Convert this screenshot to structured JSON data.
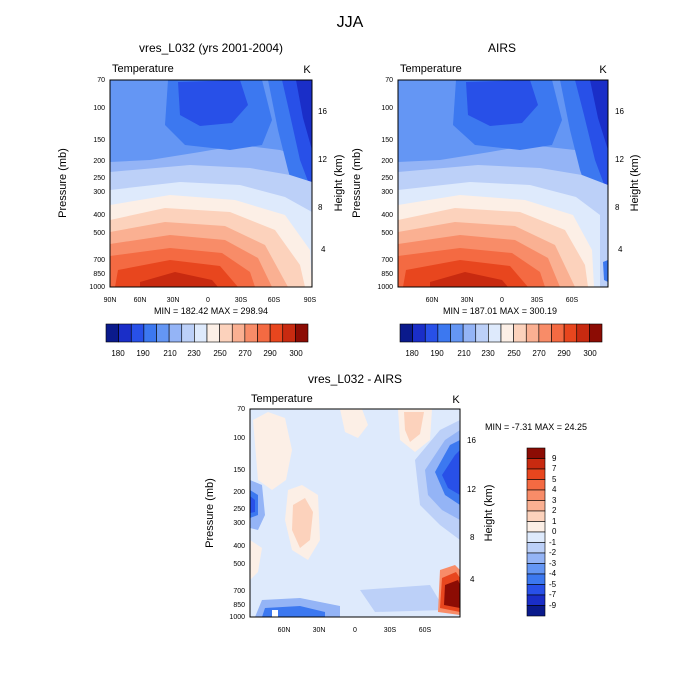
{
  "figure_title": "JJA",
  "colors": {
    "warm_scale": [
      "#0a1a8c",
      "#1a2ec8",
      "#2850e8",
      "#3c78f0",
      "#6496f4",
      "#94b4f6",
      "#bcd0f8",
      "#deeafc",
      "#fcefe6",
      "#fcd2bc",
      "#fab092",
      "#f88c68",
      "#f46a42",
      "#e8461e",
      "#c82a10",
      "#8c0c04"
    ],
    "diff_scale": [
      "#0a1a8c",
      "#1a2ec8",
      "#2850e8",
      "#3c78f0",
      "#6496f4",
      "#94b4f6",
      "#bcd0f8",
      "#deeafc",
      "#fcefe6",
      "#fcd2bc",
      "#fab092",
      "#f88c68",
      "#f46a42",
      "#e8461e",
      "#c82a10",
      "#8c0c04"
    ]
  },
  "chart_data": [
    {
      "type": "heatmap",
      "title": "vres_L032 (yrs 2001-2004)",
      "variable_label": "Temperature",
      "units": "K",
      "ylabel_left": "Pressure (mb)",
      "ylabel_right": "Height (km)",
      "pressure_ticks": [
        "70",
        "100",
        "150",
        "200",
        "250",
        "300",
        "400",
        "500",
        "700",
        "850",
        "1000"
      ],
      "height_ticks": [
        "16",
        "12",
        "8",
        "4"
      ],
      "lat_ticks": [
        "90N",
        "60N",
        "30N",
        "0",
        "30S",
        "60S",
        "90S"
      ],
      "min_max_text": "MIN = 182.42   MAX = 298.94",
      "colorbar_labels": [
        "180",
        "190",
        "210",
        "230",
        "250",
        "270",
        "290",
        "300"
      ]
    },
    {
      "type": "heatmap",
      "title": "AIRS",
      "variable_label": "Temperature",
      "units": "K",
      "ylabel_left": "Pressure (mb)",
      "ylabel_right": "Height (km)",
      "pressure_ticks": [
        "70",
        "100",
        "150",
        "200",
        "250",
        "300",
        "400",
        "500",
        "700",
        "850",
        "1000"
      ],
      "height_ticks": [
        "16",
        "12",
        "8",
        "4"
      ],
      "lat_ticks": [
        "60N",
        "30N",
        "0",
        "30S",
        "60S"
      ],
      "min_max_text": "MIN = 187.01   MAX = 300.19",
      "colorbar_labels": [
        "180",
        "190",
        "210",
        "230",
        "250",
        "270",
        "290",
        "300"
      ]
    },
    {
      "type": "heatmap",
      "title": "vres_L032 - AIRS",
      "variable_label": "Temperature",
      "units": "K",
      "ylabel_left": "Pressure (mb)",
      "ylabel_right": "Height (km)",
      "pressure_ticks": [
        "70",
        "100",
        "150",
        "200",
        "250",
        "300",
        "400",
        "500",
        "700",
        "850",
        "1000"
      ],
      "height_ticks": [
        "16",
        "12",
        "8",
        "4"
      ],
      "lat_ticks": [
        "60N",
        "30N",
        "0",
        "30S",
        "60S"
      ],
      "min_max_text": "MIN =  -7.31   MAX =  24.25",
      "colorbar_labels": [
        "9",
        "7",
        "5",
        "4",
        "3",
        "2",
        "1",
        "0",
        "-1",
        "-2",
        "-3",
        "-4",
        "-5",
        "-7",
        "-9"
      ]
    }
  ]
}
